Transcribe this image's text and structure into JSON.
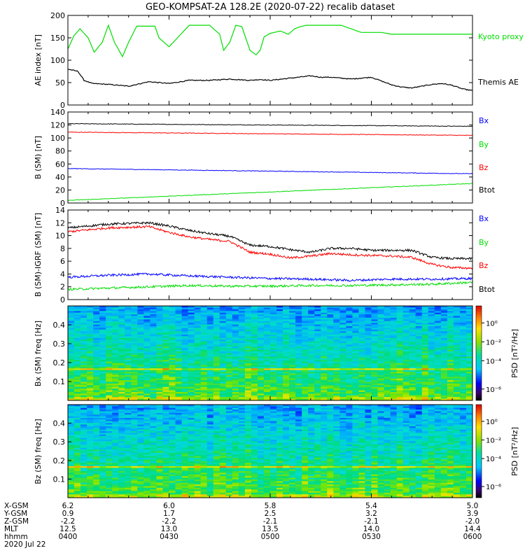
{
  "title": "GEO-KOMPSAT-2A 128.2E (2020-07-22) recalib dataset",
  "colors": {
    "black": "#000000",
    "red": "#ff0000",
    "green": "#00dd00",
    "blue": "#0000ff"
  },
  "chart_data": [
    {
      "type": "line",
      "panel": "ae",
      "ylabel": "AE index [nT]",
      "ylim": [
        0,
        200
      ],
      "yticks": [
        "0",
        "50",
        "100",
        "150",
        "200"
      ],
      "x": [
        "0400",
        "0430",
        "0500",
        "0530",
        "0600"
      ],
      "series": [
        {
          "name": "Kyoto proxy AE",
          "color": "#00dd00",
          "t": [
            0,
            3,
            6,
            10,
            13,
            17,
            20,
            23,
            27,
            30,
            34,
            37,
            40,
            43,
            45,
            50,
            60,
            70,
            75,
            77,
            80,
            83,
            86,
            90,
            93,
            95,
            97,
            100,
            105,
            109,
            112,
            115,
            118,
            120,
            125,
            130,
            135,
            140,
            145,
            150,
            155,
            160,
            165,
            170,
            175,
            180,
            185,
            190,
            195,
            200
          ],
          "v": [
            125,
            155,
            170,
            150,
            118,
            140,
            178,
            140,
            108,
            140,
            176,
            176,
            176,
            176,
            150,
            130,
            178,
            178,
            158,
            122,
            140,
            178,
            175,
            122,
            112,
            122,
            152,
            160,
            165,
            158,
            170,
            175,
            178,
            178,
            178,
            178,
            178,
            170,
            162,
            162,
            162,
            158,
            158,
            158,
            158,
            158,
            158,
            158,
            158,
            158
          ]
        },
        {
          "name": "Themis AE",
          "color": "#000000",
          "t": [
            0,
            5,
            8,
            12,
            20,
            30,
            40,
            50,
            60,
            70,
            80,
            90,
            95,
            100,
            110,
            120,
            125,
            130,
            140,
            150,
            160,
            165,
            170,
            180,
            185,
            190,
            195,
            200
          ],
          "v": [
            80,
            75,
            55,
            48,
            46,
            42,
            52,
            48,
            55,
            55,
            58,
            55,
            57,
            55,
            60,
            65,
            62,
            62,
            58,
            62,
            45,
            40,
            38,
            46,
            48,
            44,
            36,
            32
          ]
        }
      ]
    },
    {
      "type": "line",
      "panel": "bsm",
      "ylabel": "B (SM) [nT]",
      "ylim": [
        0,
        140
      ],
      "yticks": [
        "0",
        "20",
        "40",
        "60",
        "80",
        "100",
        "120",
        "140"
      ],
      "series": [
        {
          "name": "Bx",
          "color": "#000000",
          "v": [
            122,
            118
          ]
        },
        {
          "name": "By",
          "color": "#ff0000",
          "v": [
            109,
            104
          ]
        },
        {
          "name": "Bz",
          "color": "#0000ff",
          "v": [
            53,
            45
          ]
        },
        {
          "name": "Btot",
          "color": "#00dd00",
          "v": [
            4,
            30
          ]
        }
      ]
    },
    {
      "type": "line",
      "panel": "bigrf",
      "ylabel": "B (SM)-IGRF (SM) [nT]",
      "ylim": [
        0,
        14
      ],
      "yticks": [
        "0",
        "2",
        "4",
        "6",
        "8",
        "10",
        "12",
        "14"
      ],
      "series": [
        {
          "name": "Bx",
          "color": "#000000",
          "t": [
            0,
            20,
            40,
            50,
            60,
            70,
            80,
            90,
            100,
            110,
            120,
            130,
            140,
            150,
            160,
            170,
            180,
            190,
            200
          ],
          "v": [
            11.2,
            11.8,
            12.0,
            11.5,
            10.8,
            10.3,
            9.9,
            8.5,
            8.3,
            7.8,
            7.4,
            8.0,
            8.0,
            7.7,
            7.7,
            7.7,
            6.6,
            6.4,
            6.4
          ]
        },
        {
          "name": "By",
          "color": "#ff0000",
          "t": [
            0,
            20,
            40,
            50,
            60,
            70,
            80,
            90,
            100,
            110,
            120,
            130,
            140,
            150,
            160,
            170,
            180,
            190,
            200
          ],
          "v": [
            10.6,
            11.2,
            11.4,
            10.5,
            9.8,
            9.4,
            9.1,
            7.4,
            7.1,
            6.5,
            6.8,
            7.2,
            7.0,
            6.9,
            6.8,
            6.6,
            5.5,
            5.0,
            4.9
          ]
        },
        {
          "name": "Bz",
          "color": "#0000ff",
          "t": [
            0,
            20,
            40,
            60,
            80,
            100,
            120,
            140,
            160,
            180,
            200
          ],
          "v": [
            3.5,
            3.8,
            4.0,
            3.7,
            3.5,
            3.3,
            3.2,
            3.0,
            3.2,
            3.2,
            3.3
          ]
        },
        {
          "name": "Btot",
          "color": "#00dd00",
          "t": [
            0,
            20,
            40,
            60,
            80,
            100,
            120,
            140,
            160,
            180,
            200
          ],
          "v": [
            1.6,
            1.8,
            2.0,
            2.2,
            2.1,
            2.1,
            2.2,
            2.2,
            2.3,
            2.4,
            2.7
          ]
        }
      ]
    },
    {
      "type": "heatmap",
      "panel": "spec_bx",
      "ylabel": "Bx (SM) freq [Hz]",
      "ylim": [
        0,
        0.5
      ],
      "yticks": [
        "0.1",
        "0.2",
        "0.3",
        "0.4"
      ]
    },
    {
      "type": "heatmap",
      "panel": "spec_bz",
      "ylabel": "Bz (SM) freq [Hz]",
      "ylim": [
        0,
        0.5
      ],
      "yticks": [
        "0.1",
        "0.2",
        "0.3",
        "0.4"
      ]
    }
  ],
  "colorbar": {
    "label": "PSD [nT²/Hz]",
    "ticks": [
      "10⁰",
      "10⁻²",
      "10⁻⁴",
      "10⁻⁶"
    ]
  },
  "ephemeris": {
    "labels": [
      "X-GSM",
      "Y-GSM",
      "Z-GSM",
      "MLT",
      "hhmm",
      "2020 Jul 22"
    ],
    "columns": [
      [
        "6.2",
        "0.9",
        "-2.2",
        "12.5",
        "0400"
      ],
      [
        "6.0",
        "1.7",
        "-2.2",
        "13.0",
        "0430"
      ],
      [
        "5.8",
        "2.5",
        "-2.1",
        "13.5",
        "0500"
      ],
      [
        "5.4",
        "3.2",
        "-2.1",
        "14.0",
        "0530"
      ],
      [
        "5.0",
        "3.9",
        "-2.0",
        "14.4",
        "0600"
      ]
    ]
  }
}
